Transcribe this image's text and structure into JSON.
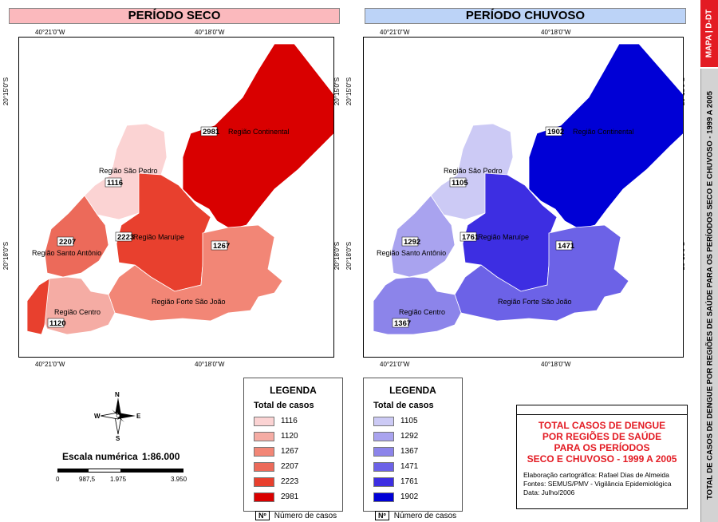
{
  "headers": {
    "dry": "PERÍODO SECO",
    "rainy": "PERÍODO CHUVOSO"
  },
  "coords": {
    "lon_left": "40°21'0\"W",
    "lon_right": "40°18'0\"W",
    "lat_top": "20°15'0\"S",
    "lat_bottom": "20°18'0\"S"
  },
  "regions": {
    "continental": "Região Continental",
    "sao_pedro": "Região São Pedro",
    "santo_antonio": "Região Santo Antônio",
    "maruipe": "Região Maruípe",
    "centro": "Região Centro",
    "forte": "Região Forte São João"
  },
  "dry_values": {
    "continental": "2981",
    "sao_pedro": "1116",
    "santo_antonio": "2207",
    "maruipe": "2223",
    "centro": "1120",
    "forte": "1267"
  },
  "rainy_values": {
    "continental": "1902",
    "sao_pedro": "1105",
    "santo_antonio": "1292",
    "maruipe": "1761",
    "centro": "1367",
    "forte": "1471"
  },
  "dry_colors": {
    "continental": "#d90000",
    "sao_pedro": "#fbd3d3",
    "santo_antonio": "#ec6a5a",
    "maruipe": "#e8402e",
    "centro": "#f5aca4",
    "forte": "#f28676",
    "centro_south": "#e8402e"
  },
  "rainy_colors": {
    "continental": "#0000d6",
    "sao_pedro": "#cccaf5",
    "santo_antonio": "#a9a3ef",
    "maruipe": "#3d2ee2",
    "centro": "#8c84ea",
    "forte": "#6c62e7"
  },
  "legend_dry": {
    "title": "LEGENDA",
    "subtitle": "Total de casos",
    "items": [
      {
        "value": "1116",
        "color": "#fbd3d3"
      },
      {
        "value": "1120",
        "color": "#f5aca4"
      },
      {
        "value": "1267",
        "color": "#f28676"
      },
      {
        "value": "2207",
        "color": "#ec6a5a"
      },
      {
        "value": "2223",
        "color": "#e8402e"
      },
      {
        "value": "2981",
        "color": "#d90000"
      }
    ],
    "note_symbol": "Nº",
    "note_text": "Número de casos"
  },
  "legend_rainy": {
    "title": "LEGENDA",
    "subtitle": "Total de casos",
    "items": [
      {
        "value": "1105",
        "color": "#cccaf5"
      },
      {
        "value": "1292",
        "color": "#a9a3ef"
      },
      {
        "value": "1367",
        "color": "#8c84ea"
      },
      {
        "value": "1471",
        "color": "#6c62e7"
      },
      {
        "value": "1761",
        "color": "#3d2ee2"
      },
      {
        "value": "1902",
        "color": "#0000d6"
      }
    ],
    "note_symbol": "Nº",
    "note_text": "Número de casos"
  },
  "compass": {
    "n": "N",
    "s": "S",
    "e": "E",
    "w": "W"
  },
  "scale": {
    "label": "Escala numérica",
    "value": "1:86.000",
    "ticks": [
      "0",
      "987,5",
      "1.975",
      "3.950"
    ]
  },
  "title_box": {
    "lines": [
      "TOTAL CASOS DE DENGUE",
      "POR REGIÕES DE SAÚDE",
      "PARA OS PERÍODOS",
      "SECO E CHUVOSO - 1999 A 2005"
    ],
    "credit1": "Elaboração cartográfica: Rafael Dias de Almeida",
    "credit2": "Fontes: SEMUS/PMV - Vigilância Epidemiológica",
    "credit3": "Data: Julho/2006"
  },
  "sidebar": {
    "top": "MAPA | D-DT",
    "bottom": "TOTAL DE CASOS DE DENGUE POR REGIÕES DE SAÚDE PARA OS PERÍODOS SECO E CHUVOSO - 1999 A 2005"
  },
  "colors": {
    "dry_header": "#fbb9bd",
    "rainy_header": "#bcd3f7",
    "accent": "#e31b23"
  }
}
